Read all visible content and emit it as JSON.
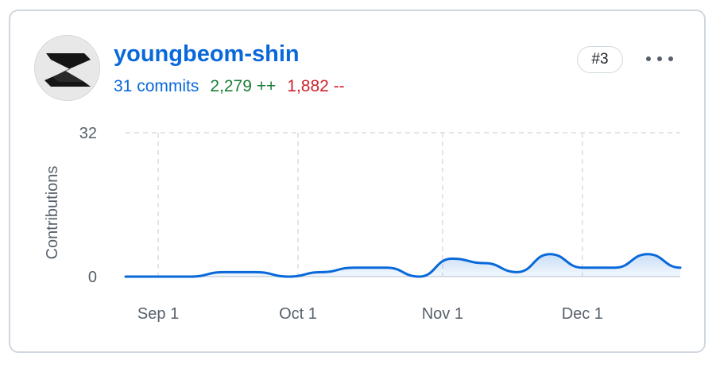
{
  "contributor": {
    "username": "youngbeom-shin",
    "commits": "31 commits",
    "additions": "2,279 ++",
    "deletions": "1,882 --",
    "rank": "#3",
    "more_icon": "kebab-horizontal-icon",
    "avatar_icon": "identicon-avatar"
  },
  "colors": {
    "accent": "#0969da",
    "additions": "#1a7f37",
    "deletions": "#cf222e",
    "border": "#d0d7de"
  },
  "chart_data": {
    "type": "area",
    "title": "",
    "xlabel": "",
    "ylabel": "Contributions",
    "ylim": [
      0,
      32
    ],
    "y_ticks": [
      0,
      32
    ],
    "x_ticks": [
      "Sep 1",
      "Oct 1",
      "Nov 1",
      "Dec 1"
    ],
    "x_range": [
      "2024-08-25",
      "2024-12-22"
    ],
    "grid": true,
    "series": [
      {
        "x": [
          "2024-08-25",
          "2024-09-01",
          "2024-09-08",
          "2024-09-15",
          "2024-09-22",
          "2024-09-29",
          "2024-10-06",
          "2024-10-13",
          "2024-10-20",
          "2024-10-27",
          "2024-11-03",
          "2024-11-10",
          "2024-11-17",
          "2024-11-24",
          "2024-12-01",
          "2024-12-08",
          "2024-12-15",
          "2024-12-22"
        ],
        "values": [
          0,
          0,
          0,
          1,
          1,
          0,
          1,
          2,
          2,
          0,
          4,
          3,
          1,
          5,
          2,
          2,
          5,
          2
        ]
      }
    ]
  }
}
